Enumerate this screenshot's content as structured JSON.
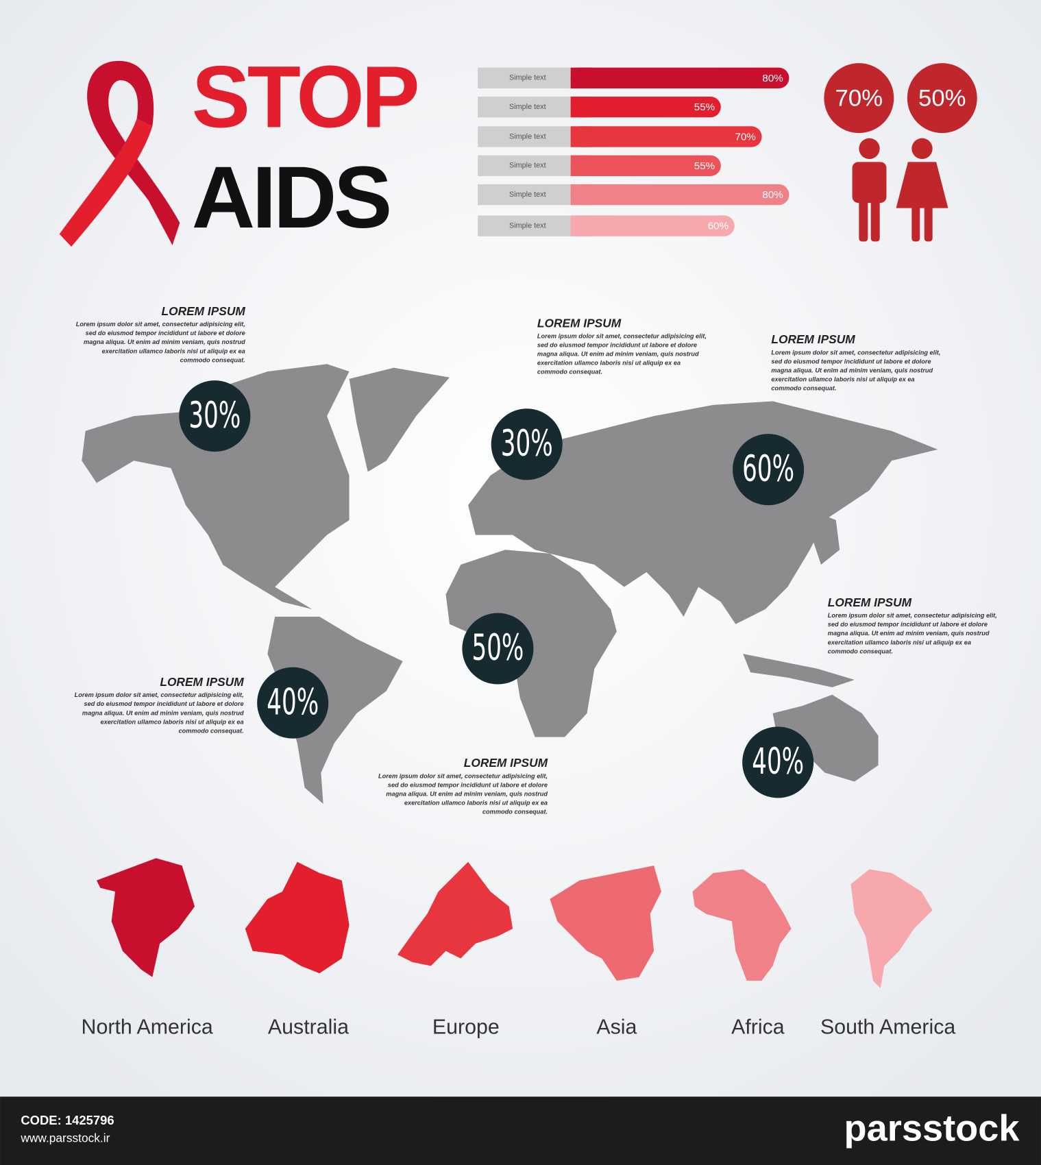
{
  "header": {
    "title_line1": "STOP",
    "title_line2": "AIDS"
  },
  "bars": [
    {
      "label": "Simple text",
      "value": 80,
      "value_label": "80%",
      "color": "#c8102e"
    },
    {
      "label": "Simple text",
      "value": 55,
      "value_label": "55%",
      "color": "#e31e2d"
    },
    {
      "label": "Simple text",
      "value": 70,
      "value_label": "70%",
      "color": "#e8363f"
    },
    {
      "label": "Simple text",
      "value": 55,
      "value_label": "55%",
      "color": "#ec5259"
    },
    {
      "label": "Simple text",
      "value": 80,
      "value_label": "80%",
      "color": "#f08189"
    },
    {
      "label": "Simple text",
      "value": 60,
      "value_label": "60%",
      "color": "#f6a8ad"
    }
  ],
  "gender": [
    {
      "value": 70,
      "label": "70%"
    },
    {
      "value": 50,
      "label": "50%"
    }
  ],
  "map_callouts": [
    {
      "value": 30,
      "label": "30%"
    },
    {
      "value": 30,
      "label": "30%"
    },
    {
      "value": 60,
      "label": "60%"
    },
    {
      "value": 50,
      "label": "50%"
    },
    {
      "value": 40,
      "label": "40%"
    },
    {
      "value": 40,
      "label": "40%"
    }
  ],
  "notes": [
    {
      "title": "LOREM IPSUM",
      "lines": [
        "Lorem ipsum dolor sit amet, consectetur adipisicing elit,",
        "sed do eiusmod tempor incididunt ut labore et dolore",
        "magna aliqua. Ut enim ad minim veniam, quis nostrud",
        "exercitation ullamco laboris nisi ut aliquip ex ea",
        "commodo consequat."
      ]
    },
    {
      "title": "LOREM IPSUM",
      "lines": [
        "Lorem ipsum dolor sit amet, consectetur adipisicing elit,",
        "sed do eiusmod tempor incididunt ut labore et dolore",
        "magna aliqua. Ut enim ad minim veniam, quis nostrud",
        "exercitation ullamco laboris nisi ut aliquip ex ea",
        "commodo consequat."
      ]
    },
    {
      "title": "LOREM IPSUM",
      "lines": [
        "Lorem ipsum dolor sit amet, consectetur adipisicing elit,",
        "sed do eiusmod tempor incididunt ut labore et dolore",
        "magna aliqua. Ut enim ad minim veniam, quis nostrud",
        "exercitation ullamco laboris nisi ut aliquip ex ea",
        "commodo consequat."
      ]
    },
    {
      "title": "LOREM IPSUM",
      "lines": [
        "Lorem ipsum dolor sit amet, consectetur adipisicing elit,",
        "sed do eiusmod tempor incididunt ut labore et dolore",
        "magna aliqua. Ut enim ad minim veniam, quis nostrud",
        "exercitation ullamco laboris nisi ut aliquip ex ea",
        "commodo consequat."
      ]
    },
    {
      "title": "LOREM IPSUM",
      "lines": [
        "Lorem ipsum dolor sit amet, consectetur adipisicing elit,",
        "sed do eiusmod tempor incididunt ut labore et dolore",
        "magna aliqua. Ut enim ad minim veniam, quis nostrud",
        "exercitation ullamco laboris nisi ut aliquip ex ea",
        "commodo consequat."
      ]
    },
    {
      "title": "LOREM IPSUM",
      "lines": [
        "Lorem ipsum dolor sit amet, consectetur adipisicing elit,",
        "sed do eiusmod tempor incididunt ut labore et dolore",
        "magna aliqua. Ut enim ad minim veniam, quis nostrud",
        "exercitation ullamco laboris nisi ut aliquip ex ea",
        "commodo consequat."
      ]
    }
  ],
  "continents": [
    {
      "name": "North America",
      "color": "#c8102e"
    },
    {
      "name": "Australia",
      "color": "#e31e2d"
    },
    {
      "name": "Europe",
      "color": "#e8363f"
    },
    {
      "name": "Asia",
      "color": "#ec6a70"
    },
    {
      "name": "Africa",
      "color": "#f08189"
    },
    {
      "name": "South America",
      "color": "#f6a8ad"
    }
  ],
  "footer": {
    "code": "CODE: 1425796",
    "url": "www.parsstock.ir",
    "brand": "parsstock"
  }
}
